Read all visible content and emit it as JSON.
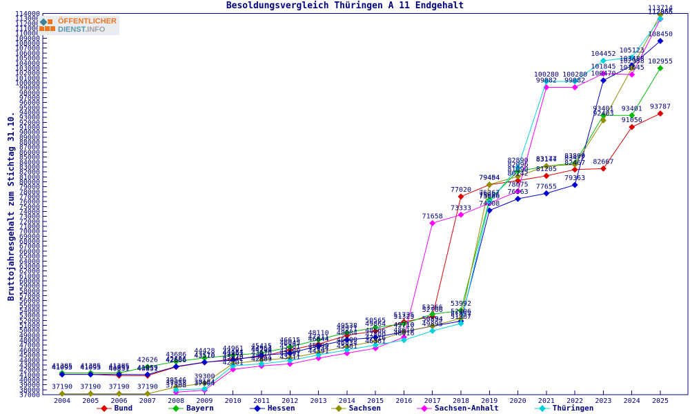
{
  "title": "Besoldungsvergleich Thüringen A 11 Endgehalt",
  "logo": {
    "line1": "ÖFFENTLICHER",
    "line2_part1": "DIENST",
    "line2_part2": ".INFO"
  },
  "colors": {
    "text": "#000080",
    "axis": "#000080",
    "background": "#ffffff",
    "logo_orange": "#ee7722",
    "logo_teal": "#5a98a8",
    "logo_gray": "#a2a2a2"
  },
  "chart_data": {
    "type": "line",
    "title": "Besoldungsvergleich Thüringen A 11 Endgehalt",
    "xlabel": "",
    "ylabel": "Bruttojahresgehalt zum Stichtag 31.10.",
    "grid": false,
    "legend_position": "bottom",
    "point_labels": true,
    "x": [
      2004,
      2005,
      2006,
      2007,
      2008,
      2009,
      2010,
      2011,
      2012,
      2013,
      2014,
      2015,
      2016,
      2017,
      2018,
      2019,
      2020,
      2021,
      2022,
      2023,
      2024,
      2025
    ],
    "y_axis": {
      "min": 37000,
      "max": 114000,
      "tick_step": 1000
    },
    "series": [
      {
        "name": "Bund",
        "color": "#dd0000",
        "values": [
          41095,
          41095,
          40851,
          40851,
          42606,
          43510,
          44184,
          44700,
          46045,
          47211,
          48971,
          49864,
          51725,
          52766,
          77020,
          79404,
          80242,
          81205,
          82467,
          82667,
          91056,
          93787
        ]
      },
      {
        "name": "Bayern",
        "color": "#00bb00",
        "values": [
          41385,
          41385,
          41385,
          42626,
          43686,
          44428,
          44961,
          45415,
          46615,
          48110,
          49538,
          50565,
          51325,
          53266,
          53992,
          76367,
          82096,
          83144,
          83800,
          93401,
          93401,
          102955
        ]
      },
      {
        "name": "Hessen",
        "color": "#0000cc",
        "values": [
          41095,
          41095,
          41095,
          41059,
          42686,
          43570,
          43961,
          44951,
          45381,
          46844,
          48084,
          48566,
          49710,
          50854,
          51857,
          74208,
          76563,
          77655,
          79363,
          100470,
          103488,
          108450
        ]
      },
      {
        "name": "Sachsen",
        "color": "#8f8f00",
        "values": [
          37190,
          37190,
          37190,
          37190,
          38546,
          39300,
          43270,
          43970,
          44400,
          45500,
          46700,
          47800,
          49710,
          50894,
          52406,
          79454,
          81090,
          83177,
          83477,
          92403,
          102958,
          113714
        ]
      },
      {
        "name": "Sachsen-Anhalt",
        "color": "#ff00ff",
        "values": [
          null,
          null,
          null,
          null,
          37508,
          37904,
          42101,
          42809,
          43211,
          44391,
          45381,
          46381,
          48610,
          71658,
          73333,
          75666,
          78075,
          99082,
          99082,
          101845,
          101645,
          112866
        ]
      },
      {
        "name": "Thüringen",
        "color": "#00d2dc",
        "values": [
          null,
          null,
          null,
          null,
          37958,
          38184,
          42842,
          43211,
          43891,
          45034,
          46034,
          47016,
          48016,
          49895,
          51367,
          75986,
          82890,
          100280,
          100280,
          104452,
          105123,
          112955
        ]
      }
    ]
  }
}
